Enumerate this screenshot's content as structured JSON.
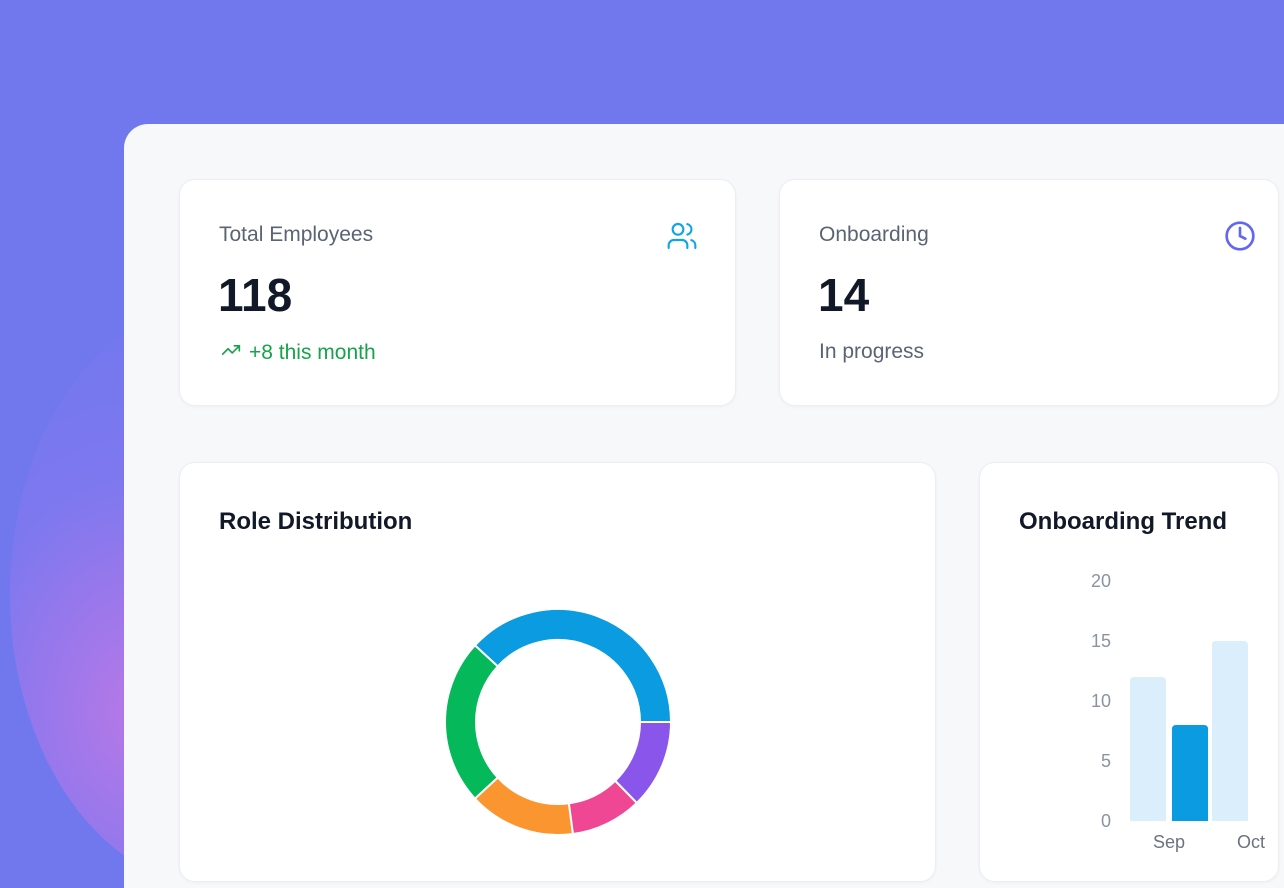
{
  "stats": [
    {
      "label": "Total Employees",
      "value": "118",
      "sub": "+8 this month",
      "icon": "users-icon",
      "icon_color": "#0ea5e9",
      "trend": "up"
    },
    {
      "label": "Onboarding",
      "value": "14",
      "sub": "In progress",
      "icon": "clock-icon",
      "icon_color": "#6366f1"
    }
  ],
  "role_distribution": {
    "title": "Role Distribution",
    "chart_data": {
      "type": "pie",
      "donut": true,
      "values": [
        45,
        28,
        18,
        12,
        15
      ],
      "colors": [
        "#0b9be0",
        "#05b85a",
        "#fb9530",
        "#ef4793",
        "#8a55ea"
      ]
    }
  },
  "onboarding_trend": {
    "title": "Onboarding Trend",
    "chart_data": {
      "type": "bar",
      "categories": [
        "Sep",
        "Oct"
      ],
      "series": [
        {
          "values": [
            12,
            15
          ],
          "color": "#dbeefc"
        },
        {
          "values": [
            8,
            null
          ],
          "color": "#0b9be0"
        }
      ],
      "yticks": [
        0,
        5,
        10,
        15,
        20
      ],
      "ylim": [
        0,
        20
      ]
    }
  }
}
